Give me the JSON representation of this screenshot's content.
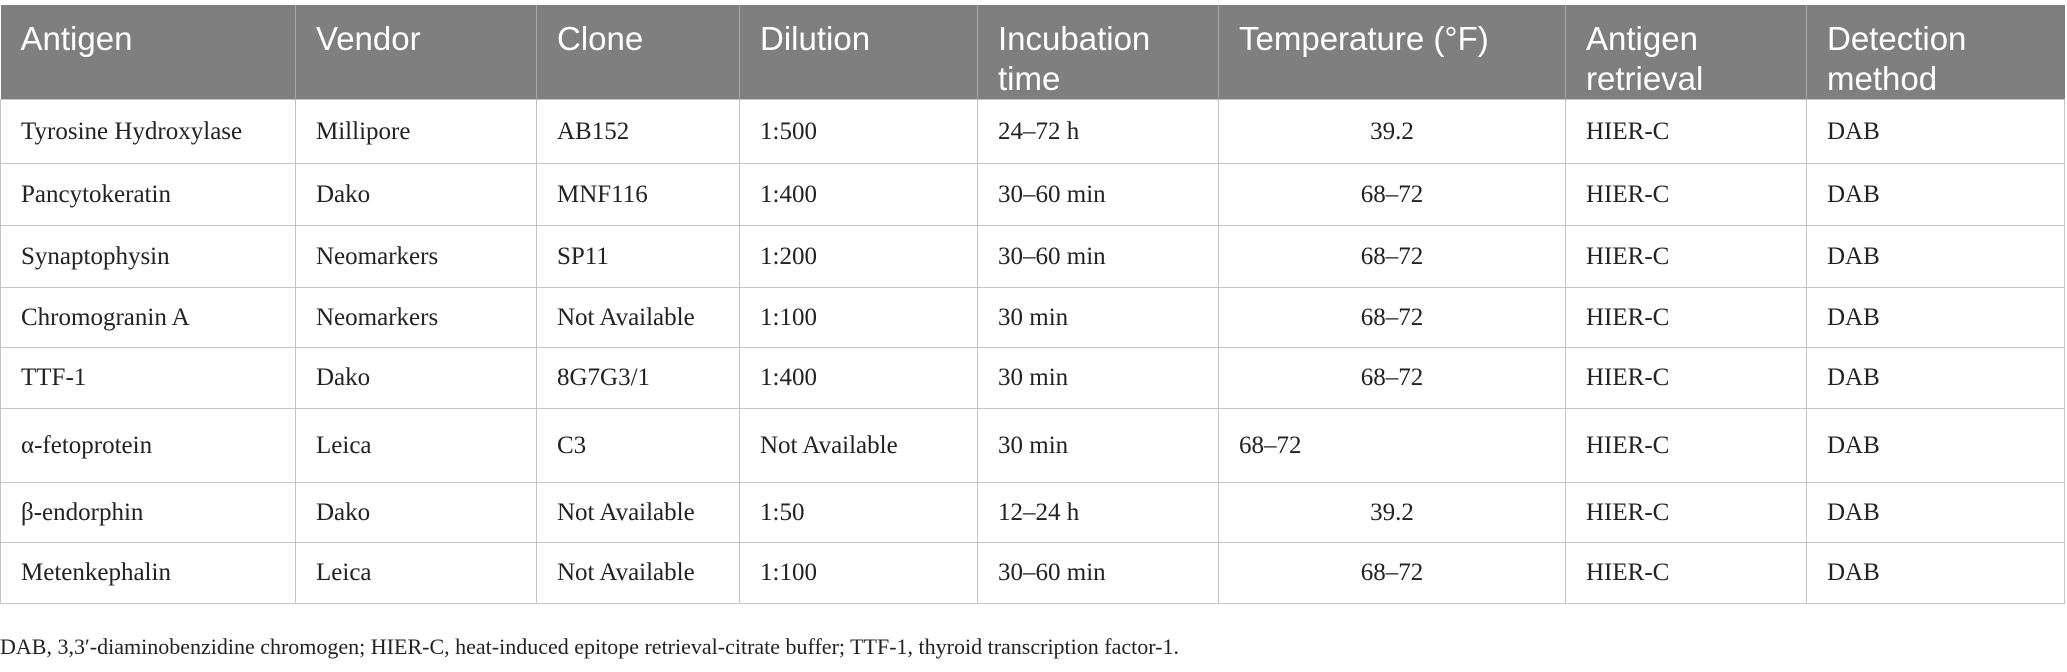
{
  "table": {
    "columns": [
      "Antigen",
      "Vendor",
      "Clone",
      "Dilution",
      "Incubation time",
      "Temperature (°F)",
      "Antigen retrieval",
      "Detection method"
    ],
    "rows": [
      [
        "Tyrosine Hydroxylase",
        "Millipore",
        "AB152",
        "1:500",
        "24–72 h",
        "39.2",
        "HIER-C",
        "DAB"
      ],
      [
        "Pancytokeratin",
        "Dako",
        "MNF116",
        "1:400",
        "30–60 min",
        "68–72",
        "HIER-C",
        "DAB"
      ],
      [
        "Synaptophysin",
        "Neomarkers",
        "SP11",
        "1:200",
        "30–60 min",
        "68–72",
        "HIER-C",
        "DAB"
      ],
      [
        "Chromogranin A",
        "Neomarkers",
        "Not Available",
        "1:100",
        "30 min",
        "68–72",
        "HIER-C",
        "DAB"
      ],
      [
        "TTF-1",
        "Dako",
        "8G7G3/1",
        "1:400",
        "30 min",
        "68–72",
        "HIER-C",
        "DAB"
      ],
      [
        "α-fetoprotein",
        "Leica",
        "C3",
        "Not Available",
        "30 min",
        "68–72",
        "HIER-C",
        "DAB"
      ],
      [
        "β-endorphin",
        "Dako",
        "Not Available",
        "1:50",
        "12–24 h",
        "39.2",
        "HIER-C",
        "DAB"
      ],
      [
        "Metenkephalin",
        "Leica",
        "Not Available",
        "1:100",
        "30–60 min",
        "68–72",
        "HIER-C",
        "DAB"
      ]
    ]
  },
  "footnote": "DAB, 3,3′-diaminobenzidine chromogen; HIER-C, heat-induced epitope retrieval-citrate buffer; TTF-1, thyroid transcription factor-1."
}
